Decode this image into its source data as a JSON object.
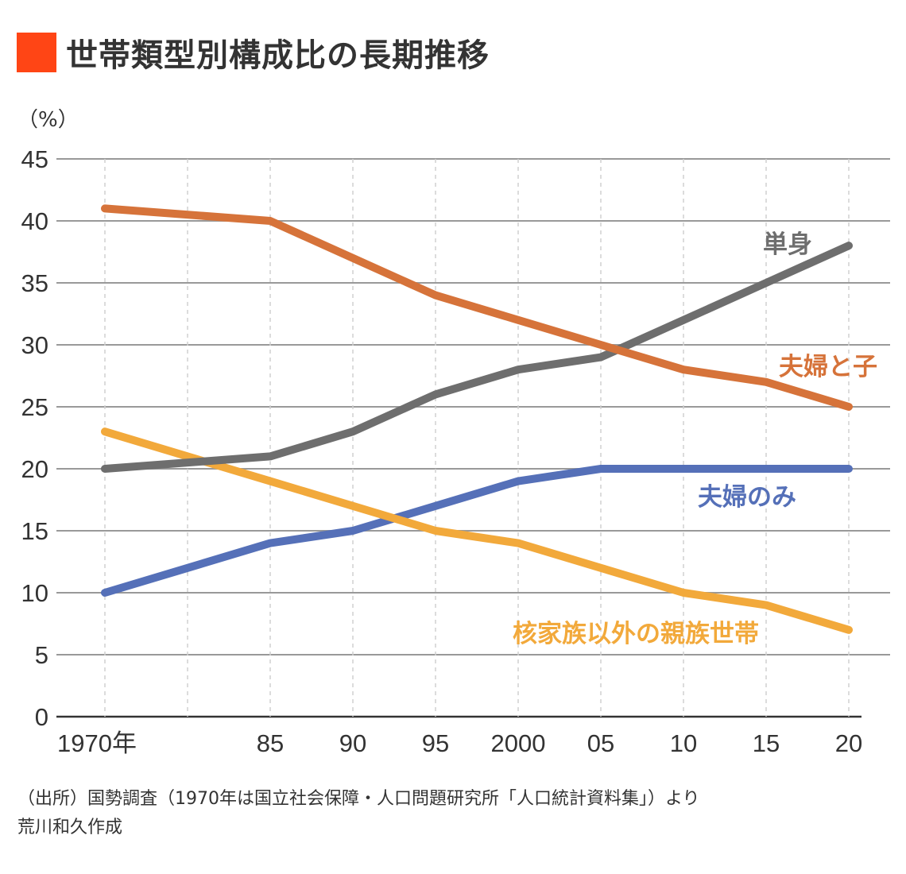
{
  "header": {
    "title": "世帯類型別構成比の長期推移",
    "accent_color": "#FF4515"
  },
  "chart_data": {
    "type": "line",
    "title": "世帯類型別構成比の長期推移",
    "ylabel": "（%）",
    "xlabel": "",
    "ylim": [
      0,
      45
    ],
    "yticks": [
      0,
      5,
      10,
      15,
      20,
      25,
      30,
      35,
      40,
      45
    ],
    "grid": true,
    "x_categories": [
      "1970",
      "",
      "1985",
      "1990",
      "1995",
      "2000",
      "2005",
      "2010",
      "2015",
      "2020"
    ],
    "x_tick_labels": [
      "1970年",
      "",
      "85",
      "90",
      "95",
      "2000",
      "05",
      "10",
      "15",
      "20"
    ],
    "x": [
      1970,
      1985,
      1990,
      1995,
      2000,
      2005,
      2010,
      2015,
      2020
    ],
    "series": [
      {
        "name": "単身",
        "color": "#6E6E6E",
        "values": [
          20,
          21,
          23,
          26,
          28,
          29,
          32,
          35,
          38
        ]
      },
      {
        "name": "夫婦と子",
        "color": "#D6733A",
        "values": [
          41,
          40,
          37,
          34,
          32,
          30,
          28,
          27,
          25
        ]
      },
      {
        "name": "夫婦のみ",
        "color": "#5570B8",
        "values": [
          10,
          14,
          15,
          17,
          19,
          20,
          20,
          20,
          20
        ]
      },
      {
        "name": "核家族以外の親族世帯",
        "color": "#F2A93B",
        "values": [
          23,
          19,
          17,
          15,
          14,
          12,
          10,
          9,
          7
        ]
      }
    ],
    "legend": "inline labels near line ends"
  },
  "footer": {
    "source": "（出所）国勢調査（1970年は国立社会保障・人口問題研究所「人口統計資料集」）より",
    "author": "荒川和久作成"
  }
}
